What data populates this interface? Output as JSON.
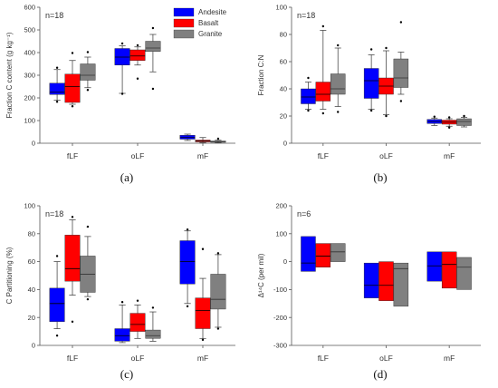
{
  "colors": {
    "Andesite": "#0000ff",
    "Basalt": "#ff0000",
    "Granite": "#808080"
  },
  "chart_data": [
    {
      "type": "box",
      "panel_label": "(a)",
      "n_label": "n=18",
      "ylabel": "Fraction C content (g kg⁻¹)",
      "ylim": [
        0,
        600
      ],
      "yticks": [
        0,
        100,
        200,
        300,
        400,
        500,
        600
      ],
      "categories": [
        "fLF",
        "oLF",
        "mF"
      ],
      "legend": {
        "entries": [
          "Andesite",
          "Basalt",
          "Granite"
        ],
        "position": "top-right"
      },
      "series": [
        {
          "name": "Andesite",
          "boxes": [
            {
              "whislo": 190,
              "q1": 215,
              "med": 225,
              "q3": 265,
              "whishi": 325,
              "fliers": [
                183,
                333
              ]
            },
            {
              "whislo": 220,
              "q1": 345,
              "med": 380,
              "q3": 418,
              "whishi": 430,
              "fliers": [
                218,
                440
              ]
            },
            {
              "whislo": 12,
              "q1": 18,
              "med": 25,
              "q3": 35,
              "whishi": 40,
              "fliers": []
            }
          ]
        },
        {
          "name": "Basalt",
          "boxes": [
            {
              "whislo": 172,
              "q1": 180,
              "med": 250,
              "q3": 305,
              "whishi": 365,
              "fliers": [
                163,
                398
              ]
            },
            {
              "whislo": 345,
              "q1": 365,
              "med": 385,
              "q3": 412,
              "whishi": 425,
              "fliers": [
                285,
                432
              ]
            },
            {
              "whislo": 3,
              "q1": 6,
              "med": 10,
              "q3": 14,
              "whishi": 25,
              "fliers": []
            }
          ]
        },
        {
          "name": "Granite",
          "boxes": [
            {
              "whislo": 245,
              "q1": 278,
              "med": 300,
              "q3": 350,
              "whishi": 380,
              "fliers": [
                235,
                402
              ]
            },
            {
              "whislo": 315,
              "q1": 405,
              "med": 420,
              "q3": 450,
              "whishi": 480,
              "fliers": [
                240,
                508
              ]
            },
            {
              "whislo": 2,
              "q1": 4,
              "med": 6,
              "q3": 10,
              "whishi": 13,
              "fliers": [
                20
              ]
            }
          ]
        }
      ]
    },
    {
      "type": "box",
      "panel_label": "(b)",
      "n_label": "n=18",
      "ylabel": "Fraction C:N",
      "ylim": [
        0,
        100
      ],
      "yticks": [
        0,
        20,
        40,
        60,
        80,
        100
      ],
      "categories": [
        "fLF",
        "oLF",
        "mF"
      ],
      "series": [
        {
          "name": "Andesite",
          "boxes": [
            {
              "whislo": 25,
              "q1": 29,
              "med": 34,
              "q3": 40,
              "whishi": 45,
              "fliers": [
                24,
                48
              ]
            },
            {
              "whislo": 25,
              "q1": 33,
              "med": 46,
              "q3": 55,
              "whishi": 65,
              "fliers": [
                24,
                69
              ]
            },
            {
              "whislo": 13,
              "q1": 14.5,
              "med": 16,
              "q3": 17.5,
              "whishi": 18.5,
              "fliers": [
                19.5
              ]
            }
          ]
        },
        {
          "name": "Basalt",
          "boxes": [
            {
              "whislo": 25,
              "q1": 31,
              "med": 36,
              "q3": 45,
              "whishi": 83,
              "fliers": [
                22,
                86
              ]
            },
            {
              "whislo": 21,
              "q1": 36,
              "med": 42,
              "q3": 48,
              "whishi": 68,
              "fliers": [
                20,
                70
              ]
            },
            {
              "whislo": 12.5,
              "q1": 14,
              "med": 15.5,
              "q3": 17,
              "whishi": 18,
              "fliers": [
                11.5,
                19
              ]
            }
          ]
        },
        {
          "name": "Granite",
          "boxes": [
            {
              "whislo": 27,
              "q1": 36,
              "med": 40,
              "q3": 51,
              "whishi": 70,
              "fliers": [
                23,
                72
              ]
            },
            {
              "whislo": 36,
              "q1": 41,
              "med": 48,
              "q3": 62,
              "whishi": 67,
              "fliers": [
                31,
                89
              ]
            },
            {
              "whislo": 12,
              "q1": 13,
              "med": 16,
              "q3": 18,
              "whishi": 19,
              "fliers": [
                20
              ]
            }
          ]
        }
      ]
    },
    {
      "type": "box",
      "panel_label": "(c)",
      "n_label": "n=18",
      "ylabel": "C Partitioning (%)",
      "ylim": [
        0,
        100
      ],
      "yticks": [
        0,
        20,
        40,
        60,
        80,
        100
      ],
      "categories": [
        "fLF",
        "oLF",
        "mF"
      ],
      "series": [
        {
          "name": "Andesite",
          "boxes": [
            {
              "whislo": 12,
              "q1": 17,
              "med": 30,
              "q3": 41,
              "whishi": 60,
              "fliers": [
                7,
                64
              ]
            },
            {
              "whislo": 2,
              "q1": 3,
              "med": 7,
              "q3": 12,
              "whishi": 29,
              "fliers": [
                31
              ]
            },
            {
              "whislo": 30,
              "q1": 44,
              "med": 60,
              "q3": 75,
              "whishi": 82,
              "fliers": [
                28,
                83
              ]
            }
          ]
        },
        {
          "name": "Basalt",
          "boxes": [
            {
              "whislo": 36,
              "q1": 46,
              "med": 55,
              "q3": 79,
              "whishi": 90,
              "fliers": [
                17,
                92
              ]
            },
            {
              "whislo": 5,
              "q1": 10,
              "med": 15,
              "q3": 23,
              "whishi": 29,
              "fliers": [
                32
              ]
            },
            {
              "whislo": 5,
              "q1": 12,
              "med": 25,
              "q3": 34,
              "whishi": 48,
              "fliers": [
                4,
                69
              ]
            }
          ]
        },
        {
          "name": "Granite",
          "boxes": [
            {
              "whislo": 35,
              "q1": 38,
              "med": 51,
              "q3": 64,
              "whishi": 78,
              "fliers": [
                33,
                85
              ]
            },
            {
              "whislo": 3,
              "q1": 5,
              "med": 7,
              "q3": 11,
              "whishi": 24,
              "fliers": [
                27
              ]
            },
            {
              "whislo": 13,
              "q1": 26,
              "med": 33,
              "q3": 51,
              "whishi": 65,
              "fliers": [
                12,
                66
              ]
            }
          ]
        }
      ]
    },
    {
      "type": "floating_bar",
      "panel_label": "(d)",
      "n_label": "n=6",
      "ylabel": "Δ¹⁴C (per mil)",
      "ylim": [
        -300,
        200
      ],
      "yticks": [
        -300,
        -200,
        -100,
        0,
        100,
        200
      ],
      "categories": [
        "fLF",
        "oLF",
        "mF"
      ],
      "series": [
        {
          "name": "Andesite",
          "boxes": [
            {
              "low": -35,
              "med": -5,
              "high": 90
            },
            {
              "low": -130,
              "med": -85,
              "high": -5
            },
            {
              "low": -70,
              "med": -15,
              "high": 35
            }
          ]
        },
        {
          "name": "Basalt",
          "boxes": [
            {
              "low": -20,
              "med": 20,
              "high": 65
            },
            {
              "low": -140,
              "med": -85,
              "high": 0
            },
            {
              "low": -95,
              "med": -10,
              "high": 35
            }
          ]
        },
        {
          "name": "Granite",
          "boxes": [
            {
              "low": 0,
              "med": 35,
              "high": 65
            },
            {
              "low": -160,
              "med": -25,
              "high": -5
            },
            {
              "low": -100,
              "med": -20,
              "high": 15
            }
          ]
        }
      ]
    }
  ]
}
